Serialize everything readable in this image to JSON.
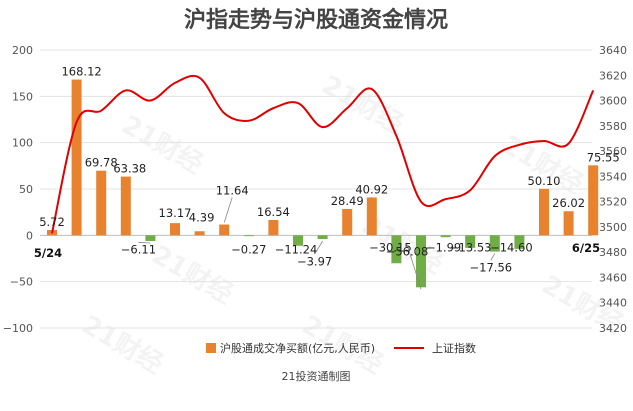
{
  "chart_data": {
    "type": "bar+line",
    "title": "沪指走势与沪股通资金情况",
    "source": "21投资通制图",
    "watermark": "21财经",
    "left_axis": {
      "ylim": [
        -100,
        200
      ],
      "ticks": [
        -100,
        -50,
        0,
        50,
        100,
        150,
        200
      ]
    },
    "right_axis": {
      "ylim": [
        3420,
        3640
      ],
      "ticks": [
        3420,
        3440,
        3460,
        3480,
        3500,
        3520,
        3540,
        3560,
        3580,
        3600,
        3620,
        3640
      ]
    },
    "start_label": "5/24",
    "end_label": "6/25",
    "bar_series": {
      "name": "沪股通成交净买额(亿元,人民币)",
      "positive_color": "#E8822E",
      "negative_color": "#70AD47",
      "values": [
        5.72,
        168.12,
        69.78,
        63.38,
        -6.11,
        13.17,
        4.39,
        11.64,
        -0.27,
        16.54,
        -11.24,
        -3.97,
        28.49,
        40.92,
        -30.15,
        -56.08,
        -1.99,
        -13.53,
        -17.56,
        -14.6,
        50.1,
        26.02,
        75.55
      ],
      "labels": [
        "5.72",
        "168.12",
        "69.78",
        "63.38",
        "−6.11",
        "13.17",
        "4.39",
        "11.64",
        "−0.27",
        "16.54",
        "−11.24",
        "−3.97",
        "28.49",
        "40.92",
        "−30.15",
        "−56.08",
        "−1.99",
        "−13.53",
        "−17.56",
        "−14.60",
        "50.10",
        "26.02",
        "75.55"
      ]
    },
    "line_series": {
      "name": "上证指数",
      "color": "#E00000",
      "values": [
        3495,
        3583,
        3592,
        3608,
        3600,
        3614,
        3618,
        3590,
        3584,
        3594,
        3598,
        3579,
        3594,
        3609,
        3572,
        3520,
        3522,
        3529,
        3556,
        3565,
        3568,
        3566,
        3608
      ]
    },
    "grid": true,
    "legend_position": "bottom"
  }
}
